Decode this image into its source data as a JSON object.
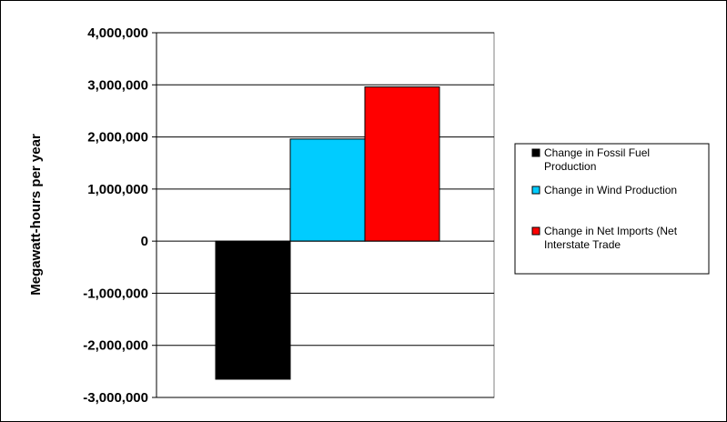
{
  "chart_data": {
    "type": "bar",
    "title": "",
    "xlabel": "",
    "ylabel": "Megawatt-hours per year",
    "ylim": [
      -3000000,
      4000000
    ],
    "yticks": [
      4000000,
      3000000,
      2000000,
      1000000,
      0,
      -1000000,
      -2000000,
      -3000000
    ],
    "ytick_labels": [
      "4,000,000",
      "3,000,000",
      "2,000,000",
      "1,000,000",
      "0",
      "-1,000,000",
      "-2,000,000",
      "-3,000,000"
    ],
    "grid": true,
    "legend_position": "right",
    "series": [
      {
        "name": "Change in Fossil Fuel Production",
        "value": -2650000,
        "color": "#000000",
        "legend_lines": [
          "Change in Fossil Fuel",
          "Production"
        ]
      },
      {
        "name": "Change in Wind Production",
        "value": 1960000,
        "color": "#00ccff",
        "legend_lines": [
          "Change in Wind Production"
        ]
      },
      {
        "name": "Change in Net Imports (Net Interstate Trade",
        "value": 2960000,
        "color": "#ff0000",
        "legend_lines": [
          "Change in Net Imports (Net",
          "Interstate Trade"
        ]
      }
    ]
  }
}
